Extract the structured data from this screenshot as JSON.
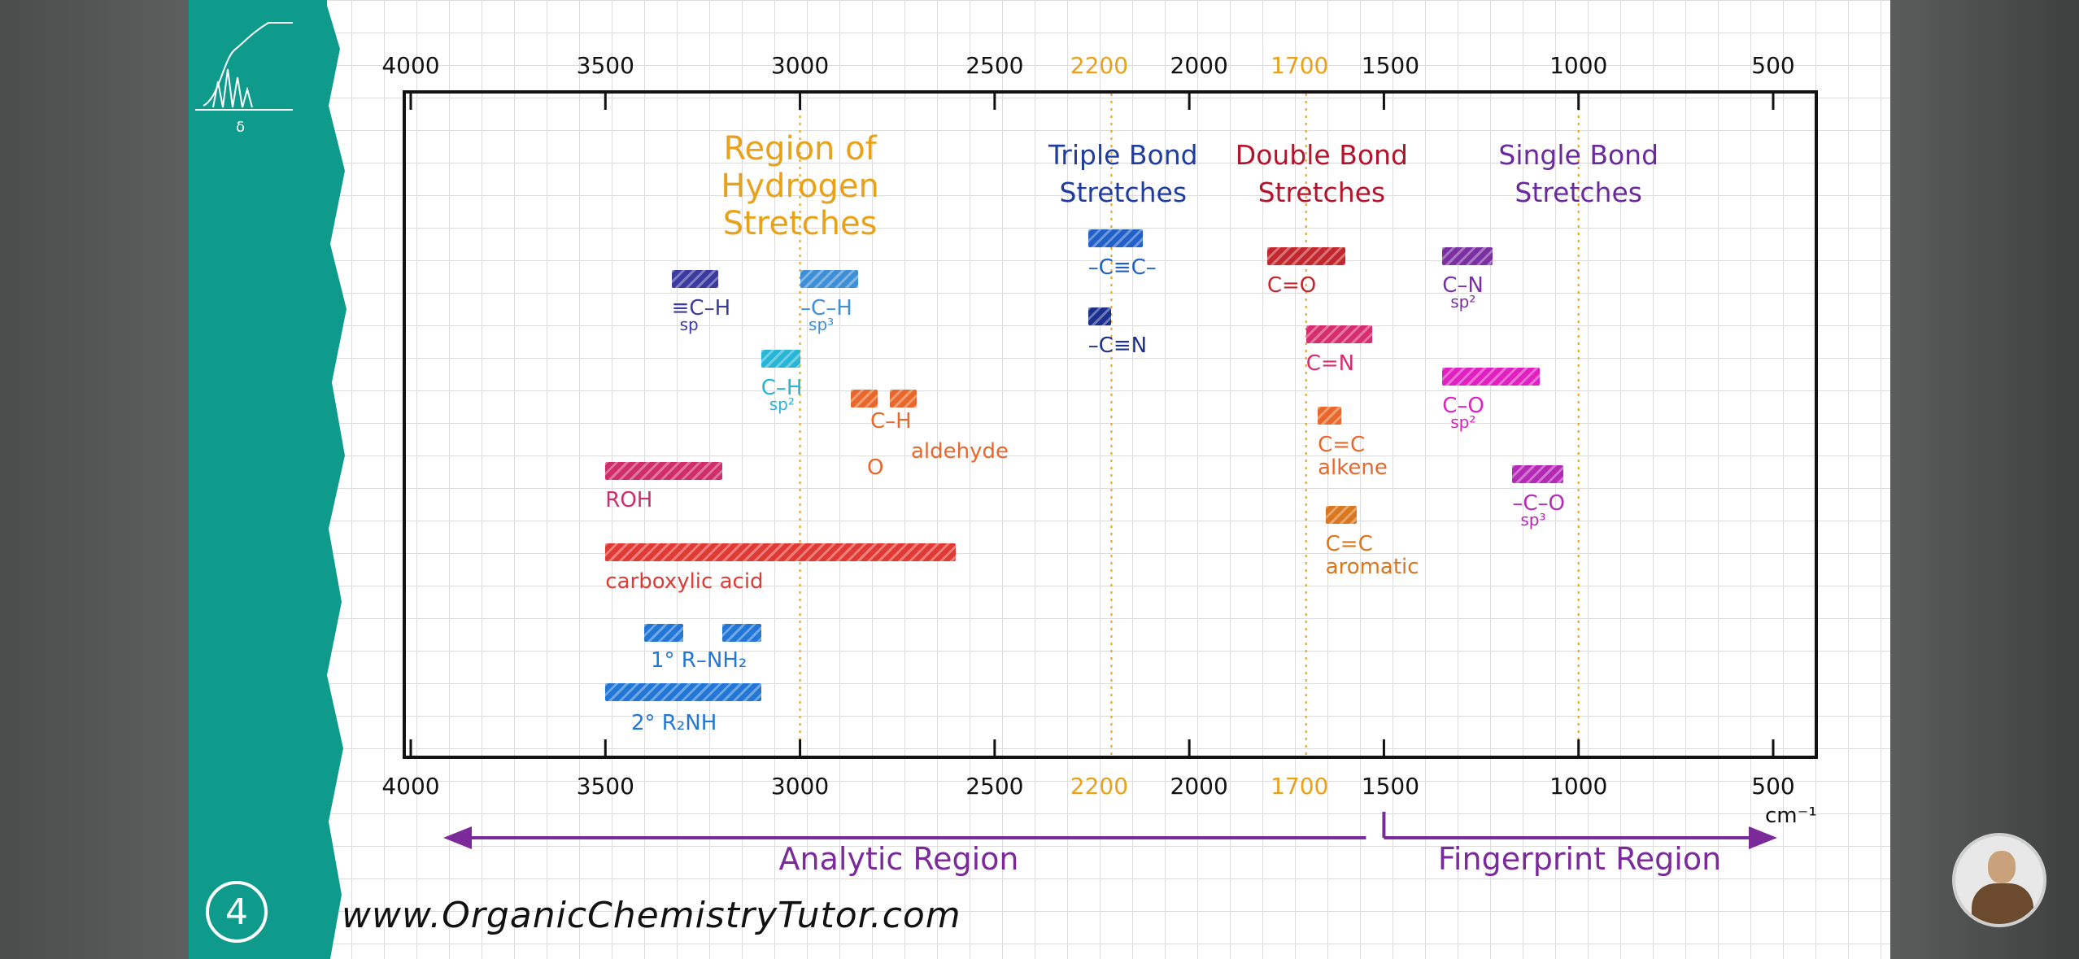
{
  "colors": {
    "teal": "#0f9b8c",
    "axis": "#111111",
    "highlight": "#e8a21a",
    "hydrogen": "#e8a21a",
    "triple": "#1f3c9e",
    "double": "#b3142b",
    "single": "#6a2a9a",
    "region_arrow": "#7b2a9a"
  },
  "badge": {
    "text": "4"
  },
  "site": {
    "url": "www.OrganicChemistryTutor.com"
  },
  "logo_icon": "nmr-spectrum-icon",
  "logo_text": "δ",
  "axis": {
    "top_ticks": [
      {
        "label": "4000",
        "value": 4000
      },
      {
        "label": "3500",
        "value": 3500
      },
      {
        "label": "3000",
        "value": 3000
      },
      {
        "label": "2500",
        "value": 2500
      },
      {
        "label": "2200",
        "value": 2200,
        "highlight": true
      },
      {
        "label": "2000",
        "value": 2000
      },
      {
        "label": "1700",
        "value": 1700,
        "highlight": true
      },
      {
        "label": "1500",
        "value": 1500
      },
      {
        "label": "1000",
        "value": 1000
      },
      {
        "label": "500",
        "value": 500
      }
    ],
    "bottom_ticks": [
      {
        "label": "4000",
        "value": 4000
      },
      {
        "label": "3500",
        "value": 3500
      },
      {
        "label": "3000",
        "value": 3000
      },
      {
        "label": "2500",
        "value": 2500
      },
      {
        "label": "2200",
        "value": 2200,
        "highlight": true
      },
      {
        "label": "2000",
        "value": 2000
      },
      {
        "label": "1700",
        "value": 1700,
        "highlight": true
      },
      {
        "label": "1500",
        "value": 1500
      },
      {
        "label": "1000",
        "value": 1000
      },
      {
        "label": "500",
        "value": 500
      }
    ],
    "unit": "cm⁻¹",
    "guide_lines": [
      3000,
      2200,
      1700,
      1000
    ]
  },
  "groups": [
    {
      "key": "hydrogen",
      "lines": [
        "Region of",
        "Hydrogen",
        "Stretches"
      ],
      "center": 3000,
      "color": "#e8a21a"
    },
    {
      "key": "triple",
      "lines": [
        "Triple Bond",
        "Stretches"
      ],
      "center": 2170,
      "color": "#1f3c9e"
    },
    {
      "key": "double",
      "lines": [
        "Double Bond",
        "Stretches"
      ],
      "center": 1660,
      "color": "#b3142b"
    },
    {
      "key": "single",
      "lines": [
        "Single Bond",
        "Stretches"
      ],
      "center": 1000,
      "color": "#6a2a9a"
    }
  ],
  "bands": [
    {
      "name": "sp-ch",
      "from": 3330,
      "to": 3210,
      "row": 1,
      "color": "#3b3aa0",
      "label": "≡C–H",
      "sub": "sp"
    },
    {
      "name": "sp3-ch",
      "from": 2999,
      "to": 2850,
      "row": 1,
      "color": "#3f8fd6",
      "label": "–C–H",
      "sub": "sp³"
    },
    {
      "name": "sp2-ch",
      "from": 3100,
      "to": 3000,
      "row": 2,
      "color": "#27b6d6",
      "label": "C–H",
      "sub": "sp²"
    },
    {
      "name": "aldehyde-1",
      "from": 2870,
      "to": 2800,
      "row": 3,
      "color": "#e8672a",
      "label": "",
      "sub": ""
    },
    {
      "name": "aldehyde-2",
      "from": 2770,
      "to": 2700,
      "row": 3,
      "color": "#e8672a",
      "label": "",
      "sub": ""
    },
    {
      "name": "roh",
      "from": 3500,
      "to": 3200,
      "row": 4,
      "color": "#d02d6b",
      "label": "ROH",
      "sub": ""
    },
    {
      "name": "carboxylic-acid",
      "from": 3500,
      "to": 2600,
      "row": 5,
      "color": "#e03a34",
      "label": "carboxylic acid",
      "sub": ""
    },
    {
      "name": "amine-1a",
      "from": 3400,
      "to": 3300,
      "row": 6,
      "color": "#2277d6",
      "label": "",
      "sub": ""
    },
    {
      "name": "amine-1b",
      "from": 3200,
      "to": 3100,
      "row": 6,
      "color": "#2277d6",
      "label": "",
      "sub": ""
    },
    {
      "name": "amine-2",
      "from": 3500,
      "to": 3100,
      "row": 7,
      "color": "#2277d6",
      "label": "",
      "sub": ""
    },
    {
      "name": "alkyne",
      "from": 2260,
      "to": 2120,
      "row": "t1",
      "color": "#2160c8",
      "label": "–C≡C–",
      "sub": ""
    },
    {
      "name": "nitrile",
      "from": 2260,
      "to": 2200,
      "row": "t2",
      "color": "#1b2f8f",
      "label": "–C≡N",
      "sub": ""
    },
    {
      "name": "carbonyl",
      "from": 1800,
      "to": 1600,
      "row": "d1",
      "color": "#c1272d",
      "label": "C=O",
      "sub": ""
    },
    {
      "name": "imine",
      "from": 1700,
      "to": 1530,
      "row": "d2",
      "color": "#d62d6e",
      "label": "C=N",
      "sub": ""
    },
    {
      "name": "alkene",
      "from": 1670,
      "to": 1610,
      "row": "d3",
      "color": "#e8672a",
      "label": "C=C",
      "sub": "alkene"
    },
    {
      "name": "aromatic",
      "from": 1650,
      "to": 1570,
      "row": "d4",
      "color": "#d9761e",
      "label": "C=C",
      "sub": "aromatic"
    },
    {
      "name": "c-n",
      "from": 1350,
      "to": 1220,
      "row": "s1",
      "color": "#7a2fa3",
      "label": "C–N",
      "sub": "sp²"
    },
    {
      "name": "c-o-sp2",
      "from": 1350,
      "to": 1100,
      "row": "s2",
      "color": "#e020c0",
      "label": "C–O",
      "sub": "sp²"
    },
    {
      "name": "c-o-sp3",
      "from": 1170,
      "to": 1040,
      "row": "s3",
      "color": "#b52ab5",
      "label": "–C–O",
      "sub": "sp³"
    }
  ],
  "extra_labels": {
    "aldehyde_formula": "C–H",
    "aldehyde_o": "O",
    "aldehyde_name": "aldehyde",
    "primary_amine": "1°  R–NH₂",
    "secondary_amine": "2°  R₂NH"
  },
  "regions": {
    "analytic": "Analytic Region",
    "fingerprint": "Fingerprint Region"
  }
}
